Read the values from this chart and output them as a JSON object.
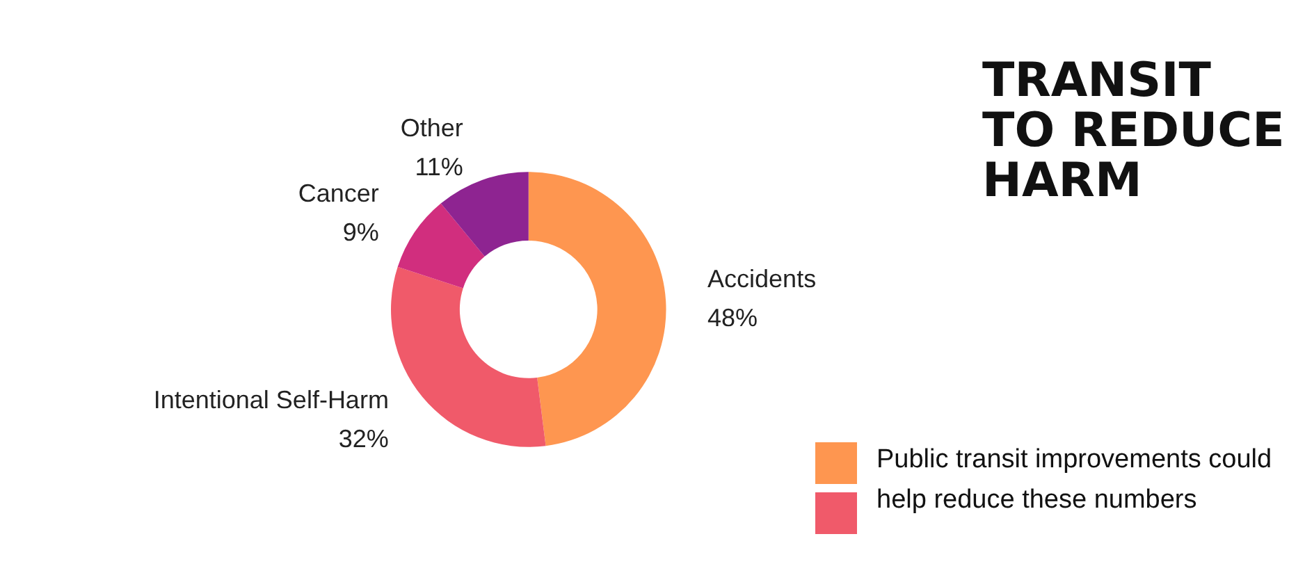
{
  "chart_data": {
    "type": "donut",
    "title": "TRANSIT TO REDUCE HARM",
    "categories": [
      "Accidents",
      "Intentional Self-Harm",
      "Cancer",
      "Other"
    ],
    "values": [
      48,
      32,
      9,
      11
    ],
    "colors": [
      "#fe9650",
      "#f05a6a",
      "#d12e7e",
      "#8e2491"
    ],
    "value_labels": [
      "48%",
      "32%",
      "9%",
      "11%"
    ],
    "annotations": [
      "Public transit improvements could help reduce these numbers"
    ],
    "legend": false
  }
}
